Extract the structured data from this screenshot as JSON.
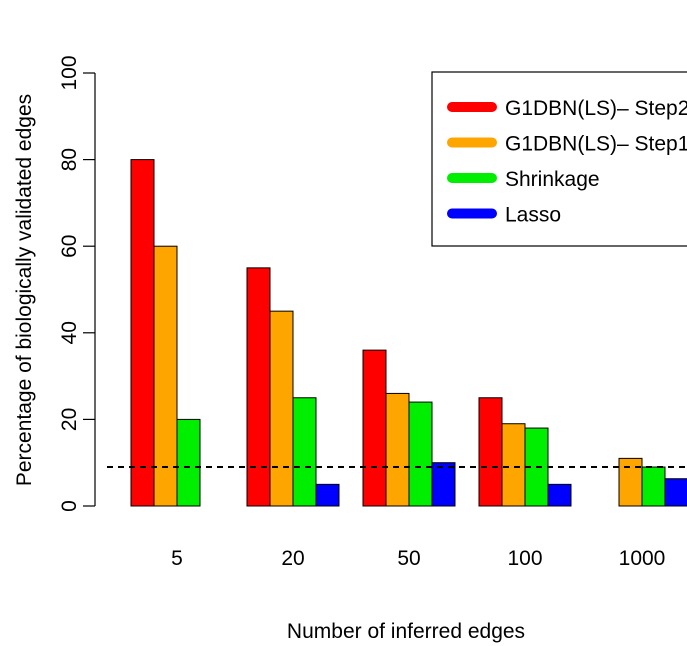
{
  "chart_data": {
    "type": "bar",
    "xlabel": "Number of inferred edges",
    "ylabel": "Percentage of biologically validated edges",
    "ylim": [
      0,
      100
    ],
    "yticks": [
      "0",
      "20",
      "40",
      "60",
      "80",
      "100"
    ],
    "categories": [
      "5",
      "20",
      "50",
      "100",
      "1000"
    ],
    "series": [
      {
        "name": "G1DBN(LS)– Step2",
        "color": "#ff0000",
        "values": [
          80,
          55,
          36,
          25,
          0
        ]
      },
      {
        "name": "G1DBN(LS)– Step1",
        "color": "#ffa500",
        "values": [
          60,
          45,
          26,
          19,
          11
        ]
      },
      {
        "name": "Shrinkage",
        "color": "#00ee00",
        "values": [
          20,
          25,
          24,
          18,
          9
        ]
      },
      {
        "name": "Lasso",
        "color": "#0000ff",
        "values": [
          0,
          5,
          10,
          5,
          6.3
        ]
      }
    ],
    "reference_line": {
      "value": 9,
      "style": "dashed"
    },
    "legend_position": "top-right",
    "grid": false
  }
}
